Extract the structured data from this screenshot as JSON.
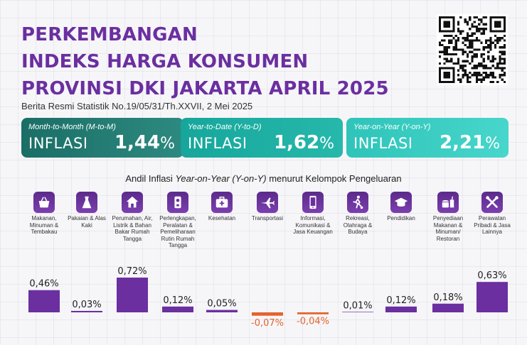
{
  "header": {
    "title_lines": [
      "PERKEMBANGAN",
      "INDEKS HARGA KONSUMEN",
      "PROVINSI DKI JAKARTA APRIL 2025"
    ],
    "subtitle": "Berita Resmi Statistik No.19/05/31/Th.XXVII, 2 Mei 2025"
  },
  "cards": [
    {
      "label": "Month-to-Month (M-to-M)",
      "word": "INFLASI",
      "value": "1,44",
      "unit": "%",
      "color": "#1a6e66"
    },
    {
      "label": "Year-to-Date (Y-to-D)",
      "word": "INFLASI",
      "value": "1,62",
      "unit": "%",
      "color": "#16a69b"
    },
    {
      "label": "Year-on-Year (Y-on-Y)",
      "word": "INFLASI",
      "value": "2,21",
      "unit": "%",
      "color": "#2fc4b9"
    }
  ],
  "chart_title": {
    "prefix": "Andil Inflasi ",
    "italic": "Year-on-Year (Y-on-Y)",
    "suffix": " menurut Kelompok Pengeluaran"
  },
  "categories": [
    {
      "label": "Makanan, Minuman & Tembakau",
      "icon": "food-basket-icon"
    },
    {
      "label": "Pakaian & Alas Kaki",
      "icon": "dress-icon"
    },
    {
      "label": "Perumahan, Air, Listrik & Bahan Bakar Rumah Tangga",
      "icon": "house-icon"
    },
    {
      "label": "Perlengkapan, Peralatan & Pemeliharaan Rutin Rumah Tangga",
      "icon": "appliance-icon"
    },
    {
      "label": "Kesehatan",
      "icon": "medical-kit-icon"
    },
    {
      "label": "Transportasi",
      "icon": "airplane-icon"
    },
    {
      "label": "Informasi, Komunikasi & Jasa Keuangan",
      "icon": "smartphone-icon"
    },
    {
      "label": "Rekreasi, Olahraga & Budaya",
      "icon": "soccer-player-icon"
    },
    {
      "label": "Pendidikan",
      "icon": "graduation-cap-icon"
    },
    {
      "label": "Penyediaan Makanan & Minuman/ Restoran",
      "icon": "fast-food-icon"
    },
    {
      "label": "Perawatan Pribadi & Jasa Lainnya",
      "icon": "tools-icon"
    }
  ],
  "chart_data": {
    "type": "bar",
    "title": "Andil Inflasi Year-on-Year (Y-on-Y) menurut Kelompok Pengeluaran",
    "categories": [
      "Makanan, Minuman & Tembakau",
      "Pakaian & Alas Kaki",
      "Perumahan, Air, Listrik & Bahan Bakar Rumah Tangga",
      "Perlengkapan, Peralatan & Pemeliharaan Rutin Rumah Tangga",
      "Kesehatan",
      "Transportasi",
      "Informasi, Komunikasi & Jasa Keuangan",
      "Rekreasi, Olahraga & Budaya",
      "Pendidikan",
      "Penyediaan Makanan & Minuman/ Restoran",
      "Perawatan Pribadi & Jasa Lainnya"
    ],
    "values": [
      0.46,
      0.03,
      0.72,
      0.12,
      0.05,
      -0.07,
      -0.04,
      0.01,
      0.12,
      0.18,
      0.63
    ],
    "value_labels": [
      "0,46%",
      "0,03%",
      "0,72%",
      "0,12%",
      "0,05%",
      "-0,07%",
      "-0,04%",
      "0,01%",
      "0,12%",
      "0,18%",
      "0,63%"
    ],
    "unit": "%",
    "colors": {
      "positive": "#6b2fa0",
      "negative": "#e5622d",
      "positive_label": "#222222",
      "negative_label": "#e5622d"
    }
  }
}
